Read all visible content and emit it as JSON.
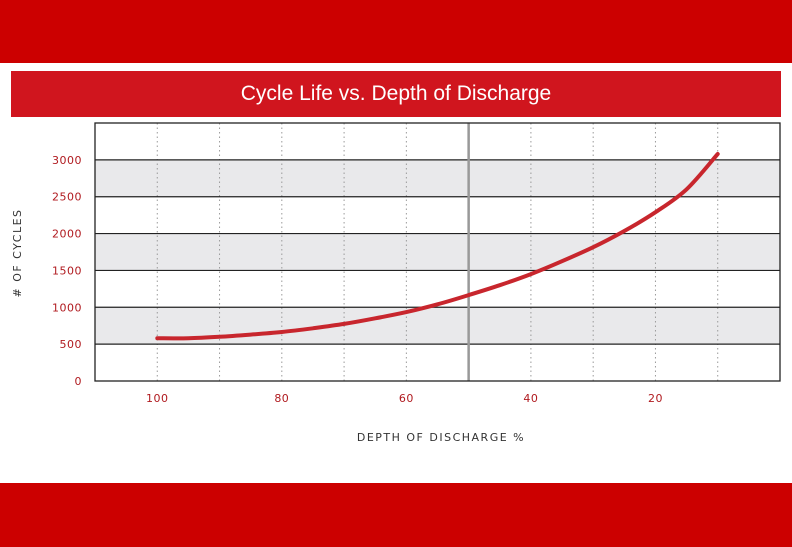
{
  "title": "Cycle Life vs. Depth of Discharge",
  "colors": {
    "band": "#cc0000",
    "title_bar": "#d0151e",
    "curve": "#c8262d",
    "tick_text": "#b01a1f",
    "stripe": "#e9e9eb"
  },
  "chart_data": {
    "type": "line",
    "title": "Cycle Life vs. Depth of Discharge",
    "xlabel": "DEPTH OF DISCHARGE %",
    "ylabel": "# OF CYCLES",
    "x_reversed": true,
    "xlim": [
      110,
      0
    ],
    "ylim": [
      0,
      3500
    ],
    "x_ticks": [
      100,
      80,
      60,
      40,
      20
    ],
    "x_tick_labels": [
      "100",
      "80",
      "60",
      "40",
      "20"
    ],
    "y_ticks": [
      0,
      500,
      1000,
      1500,
      2000,
      2500,
      3000
    ],
    "y_tick_labels": [
      "0",
      "500",
      "1000",
      "1500",
      "2000",
      "2500",
      "3000"
    ],
    "grid": true,
    "series": [
      {
        "x": [
          100,
          95,
          90,
          85,
          80,
          75,
          70,
          65,
          60,
          55,
          50,
          45,
          40,
          35,
          30,
          25,
          20,
          15,
          10
        ],
        "y": [
          580,
          580,
          600,
          630,
          665,
          715,
          775,
          850,
          935,
          1040,
          1165,
          1300,
          1450,
          1625,
          1815,
          2035,
          2290,
          2600,
          3080
        ]
      }
    ]
  }
}
